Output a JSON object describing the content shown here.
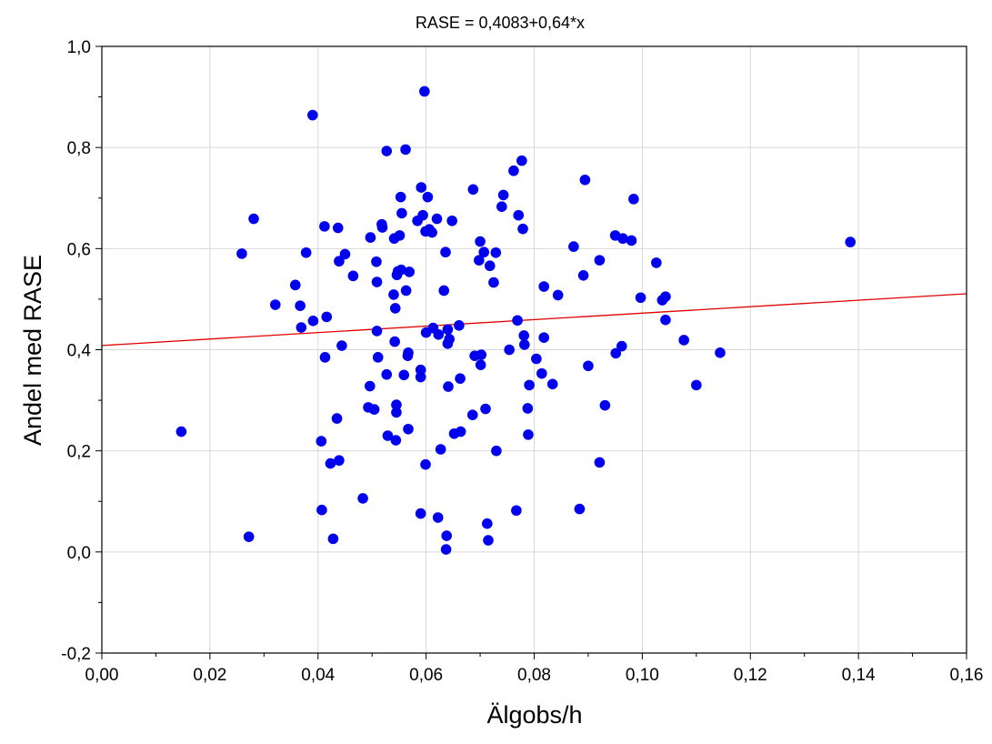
{
  "chart_data": {
    "type": "scatter",
    "title": "RASE = 0,4083+0,64*x",
    "xlabel": "Älgobs/h",
    "ylabel": "Andel med RASE",
    "xlim": [
      0,
      0.16
    ],
    "ylim": [
      -0.2,
      1.0
    ],
    "x_ticks": [
      0,
      0.02,
      0.04,
      0.06,
      0.08,
      0.1,
      0.12,
      0.14,
      0.16
    ],
    "x_tick_labels": [
      "0,00",
      "0,02",
      "0,04",
      "0,06",
      "0,08",
      "0,10",
      "0,12",
      "0,14",
      "0,16"
    ],
    "y_ticks": [
      -0.2,
      0.0,
      0.2,
      0.4,
      0.6,
      0.8,
      1.0
    ],
    "y_tick_labels": [
      "-0,2",
      "0,0",
      "0,2",
      "0,4",
      "0,6",
      "0,8",
      "1,0"
    ],
    "grid": true,
    "colors": {
      "points": "#0000ee",
      "fit_line": "#e00000",
      "grid": "#d8d8d8",
      "axes": "#000000"
    },
    "fit_line": {
      "intercept": 0.4083,
      "slope": 0.64
    },
    "points": [
      [
        0.0147,
        0.238
      ],
      [
        0.0259,
        0.59
      ],
      [
        0.0272,
        0.03
      ],
      [
        0.0281,
        0.659
      ],
      [
        0.0321,
        0.489
      ],
      [
        0.0358,
        0.528
      ],
      [
        0.0367,
        0.487
      ],
      [
        0.0369,
        0.444
      ],
      [
        0.0378,
        0.592
      ],
      [
        0.039,
        0.864
      ],
      [
        0.0391,
        0.457
      ],
      [
        0.0406,
        0.219
      ],
      [
        0.0407,
        0.083
      ],
      [
        0.0412,
        0.644
      ],
      [
        0.0413,
        0.385
      ],
      [
        0.0416,
        0.465
      ],
      [
        0.0423,
        0.175
      ],
      [
        0.0428,
        0.026
      ],
      [
        0.0435,
        0.264
      ],
      [
        0.0437,
        0.641
      ],
      [
        0.0439,
        0.181
      ],
      [
        0.0439,
        0.575
      ],
      [
        0.0444,
        0.408
      ],
      [
        0.045,
        0.589
      ],
      [
        0.0465,
        0.546
      ],
      [
        0.0483,
        0.106
      ],
      [
        0.0493,
        0.286
      ],
      [
        0.0496,
        0.328
      ],
      [
        0.0497,
        0.622
      ],
      [
        0.0504,
        0.282
      ],
      [
        0.0508,
        0.574
      ],
      [
        0.0509,
        0.534
      ],
      [
        0.0509,
        0.437
      ],
      [
        0.0511,
        0.385
      ],
      [
        0.0518,
        0.648
      ],
      [
        0.0519,
        0.642
      ],
      [
        0.0527,
        0.793
      ],
      [
        0.0527,
        0.351
      ],
      [
        0.0529,
        0.23
      ],
      [
        0.054,
        0.509
      ],
      [
        0.0541,
        0.62
      ],
      [
        0.0542,
        0.416
      ],
      [
        0.0543,
        0.482
      ],
      [
        0.0544,
        0.221
      ],
      [
        0.0545,
        0.291
      ],
      [
        0.0545,
        0.276
      ],
      [
        0.0546,
        0.548
      ],
      [
        0.0548,
        0.555
      ],
      [
        0.0551,
        0.626
      ],
      [
        0.0553,
        0.702
      ],
      [
        0.0554,
        0.558
      ],
      [
        0.0555,
        0.67
      ],
      [
        0.0559,
        0.35
      ],
      [
        0.0562,
        0.796
      ],
      [
        0.0563,
        0.517
      ],
      [
        0.0566,
        0.388
      ],
      [
        0.0567,
        0.394
      ],
      [
        0.0567,
        0.243
      ],
      [
        0.0569,
        0.554
      ],
      [
        0.0584,
        0.655
      ],
      [
        0.059,
        0.346
      ],
      [
        0.059,
        0.36
      ],
      [
        0.059,
        0.076
      ],
      [
        0.0591,
        0.721
      ],
      [
        0.0594,
        0.666
      ],
      [
        0.0597,
        0.911
      ],
      [
        0.0599,
        0.173
      ],
      [
        0.0599,
        0.634
      ],
      [
        0.06,
        0.434
      ],
      [
        0.0603,
        0.702
      ],
      [
        0.0606,
        0.638
      ],
      [
        0.0611,
        0.632
      ],
      [
        0.0613,
        0.443
      ],
      [
        0.062,
        0.659
      ],
      [
        0.0622,
        0.068
      ],
      [
        0.0623,
        0.43
      ],
      [
        0.0627,
        0.203
      ],
      [
        0.0633,
        0.517
      ],
      [
        0.0636,
        0.593
      ],
      [
        0.0637,
        0.005
      ],
      [
        0.0638,
        0.032
      ],
      [
        0.064,
        0.44
      ],
      [
        0.064,
        0.412
      ],
      [
        0.0641,
        0.327
      ],
      [
        0.0643,
        0.421
      ],
      [
        0.0648,
        0.655
      ],
      [
        0.0652,
        0.234
      ],
      [
        0.0661,
        0.448
      ],
      [
        0.0663,
        0.343
      ],
      [
        0.0664,
        0.238
      ],
      [
        0.0686,
        0.271
      ],
      [
        0.0687,
        0.717
      ],
      [
        0.069,
        0.388
      ],
      [
        0.0698,
        0.577
      ],
      [
        0.07,
        0.614
      ],
      [
        0.0701,
        0.37
      ],
      [
        0.0702,
        0.39
      ],
      [
        0.0707,
        0.593
      ],
      [
        0.071,
        0.283
      ],
      [
        0.0713,
        0.056
      ],
      [
        0.0715,
        0.023
      ],
      [
        0.0718,
        0.566
      ],
      [
        0.0725,
        0.533
      ],
      [
        0.0729,
        0.592
      ],
      [
        0.073,
        0.2
      ],
      [
        0.074,
        0.683
      ],
      [
        0.0743,
        0.706
      ],
      [
        0.0754,
        0.4
      ],
      [
        0.0762,
        0.754
      ],
      [
        0.0767,
        0.082
      ],
      [
        0.0769,
        0.458
      ],
      [
        0.0771,
        0.666
      ],
      [
        0.0777,
        0.774
      ],
      [
        0.0779,
        0.639
      ],
      [
        0.0781,
        0.428
      ],
      [
        0.0782,
        0.41
      ],
      [
        0.0788,
        0.284
      ],
      [
        0.0789,
        0.232
      ],
      [
        0.0791,
        0.33
      ],
      [
        0.0804,
        0.382
      ],
      [
        0.0814,
        0.353
      ],
      [
        0.0818,
        0.424
      ],
      [
        0.0818,
        0.525
      ],
      [
        0.0834,
        0.332
      ],
      [
        0.0844,
        0.508
      ],
      [
        0.0873,
        0.604
      ],
      [
        0.0884,
        0.085
      ],
      [
        0.0891,
        0.547
      ],
      [
        0.0894,
        0.736
      ],
      [
        0.09,
        0.368
      ],
      [
        0.0921,
        0.577
      ],
      [
        0.0921,
        0.177
      ],
      [
        0.0931,
        0.29
      ],
      [
        0.095,
        0.626
      ],
      [
        0.0951,
        0.393
      ],
      [
        0.0962,
        0.407
      ],
      [
        0.0964,
        0.62
      ],
      [
        0.098,
        0.616
      ],
      [
        0.0984,
        0.698
      ],
      [
        0.0997,
        0.503
      ],
      [
        0.1026,
        0.572
      ],
      [
        0.1037,
        0.498
      ],
      [
        0.1043,
        0.505
      ],
      [
        0.1043,
        0.459
      ],
      [
        0.1077,
        0.419
      ],
      [
        0.11,
        0.33
      ],
      [
        0.1144,
        0.394
      ],
      [
        0.1385,
        0.613
      ]
    ]
  }
}
